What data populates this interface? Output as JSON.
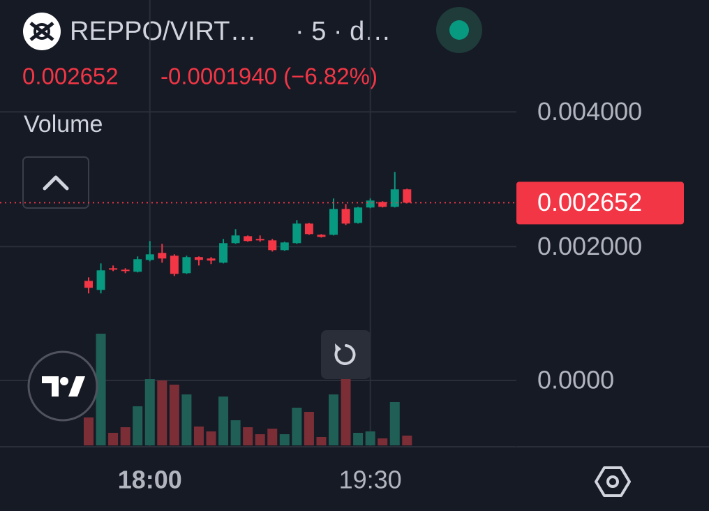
{
  "header": {
    "symbol": "REPPO/VIRT…",
    "interval": "· 5 · d…",
    "change": "-0.0001940 (−6.82%)"
  },
  "chart_data": {
    "type": "candlestick",
    "legend_label": "Volume",
    "categories": [
      null,
      null,
      null,
      null,
      null,
      "18:00",
      null,
      null,
      null,
      null,
      null,
      null,
      null,
      null,
      null,
      null,
      null,
      null,
      null,
      null,
      null,
      null,
      null,
      "19:30",
      null,
      null,
      null
    ],
    "open": [
      0.001492,
      0.001358,
      0.001679,
      0.001658,
      0.001627,
      0.001803,
      0.001907,
      0.001865,
      0.001606,
      0.001845,
      0.001824,
      0.001762,
      0.002052,
      0.002155,
      0.002114,
      0.002093,
      0.001948,
      0.002052,
      0.002342,
      0.002176,
      0.002176,
      0.002559,
      0.002352,
      0.002581,
      0.002663,
      0.002591,
      0.00285
    ],
    "high": [
      0.001544,
      0.001751,
      0.00172,
      0.001679,
      0.001855,
      0.002083,
      0.002041,
      0.001886,
      0.001865,
      0.001855,
      0.001845,
      0.002114,
      0.002259,
      0.002166,
      0.002166,
      0.002114,
      0.002073,
      0.002394,
      0.002352,
      0.002186,
      0.002715,
      0.002632,
      0.002591,
      0.002715,
      0.002674,
      0.003109,
      0.00286
    ],
    "low": [
      0.001306,
      0.001306,
      0.001637,
      0.001606,
      0.001617,
      0.001782,
      0.001762,
      0.001565,
      0.001596,
      0.00172,
      0.001741,
      0.001751,
      0.002041,
      0.002073,
      0.002073,
      0.001927,
      0.001938,
      0.002041,
      0.002176,
      0.002135,
      0.002166,
      0.002321,
      0.002342,
      0.00257,
      0.002581,
      0.002581,
      0.002642
    ],
    "close": [
      0.001389,
      0.001648,
      0.001658,
      0.001637,
      0.001814,
      0.001886,
      0.001824,
      0.001596,
      0.001845,
      0.001803,
      0.001793,
      0.002052,
      0.002166,
      0.002083,
      0.002093,
      0.001948,
      0.002062,
      0.002342,
      0.002186,
      0.002145,
      0.002559,
      0.002342,
      0.002581,
      0.002684,
      0.002591,
      0.00285,
      0.002652
    ],
    "volume": [
      40,
      160,
      18,
      26,
      56,
      95,
      93,
      87,
      73,
      27,
      20,
      70,
      36,
      26,
      16,
      24,
      16,
      54,
      48,
      12,
      73,
      95,
      18,
      20,
      10,
      62,
      14
    ],
    "up_color": "#089981",
    "down_color": "#f23645",
    "up_volume_color": "#1f5f56",
    "down_volume_color": "#7c2e37",
    "ylim": [
      -0.00097,
      0.00566
    ],
    "yticks": [
      {
        "value": 0.004,
        "label": "0.004000"
      },
      {
        "value": 0.002,
        "label": "0.002000"
      }
    ],
    "volume_ticks": [
      {
        "value": 0,
        "label": "0.0000"
      }
    ],
    "last_price": 0.002652,
    "grid": true
  }
}
